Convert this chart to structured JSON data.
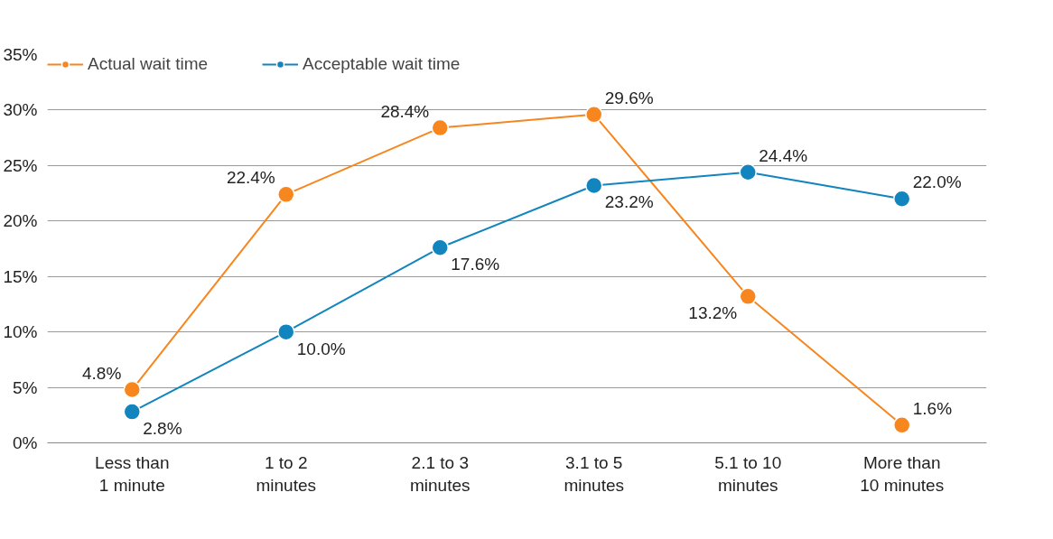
{
  "chart_data": {
    "type": "line",
    "categories": [
      "Less than\n1 minute",
      "1 to 2\nminutes",
      "2.1 to 3\nminutes",
      "3.1 to 5\nminutes",
      "5.1 to 10\nminutes",
      "More than\n10 minutes"
    ],
    "series": [
      {
        "name": "Actual wait time",
        "color": "#f7861e",
        "values": [
          4.8,
          22.4,
          28.4,
          29.6,
          13.2,
          1.6
        ],
        "value_labels": [
          "4.8%",
          "22.4%",
          "28.4%",
          "29.6%",
          "13.2%",
          "1.6%"
        ]
      },
      {
        "name": "Acceptable wait time",
        "color": "#1285bf",
        "values": [
          2.8,
          10.0,
          17.6,
          23.2,
          24.4,
          22.0
        ],
        "value_labels": [
          "2.8%",
          "10.0%",
          "17.6%",
          "23.2%",
          "24.4%",
          "22.0%"
        ]
      }
    ],
    "ylim": [
      0,
      35
    ],
    "yticks": [
      {
        "value": 0,
        "label": "0%"
      },
      {
        "value": 5,
        "label": "5%"
      },
      {
        "value": 10,
        "label": "10%"
      },
      {
        "value": 15,
        "label": "15%"
      },
      {
        "value": 20,
        "label": "20%"
      },
      {
        "value": 25,
        "label": "25%"
      },
      {
        "value": 30,
        "label": "30%"
      },
      {
        "value": 35,
        "label": "35%"
      }
    ],
    "grid": "y",
    "legend": "top left",
    "marker": "circle",
    "line_style": "solid"
  }
}
